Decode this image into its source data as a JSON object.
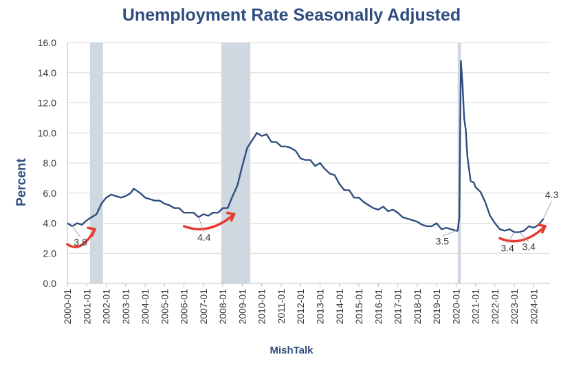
{
  "chart_data": {
    "type": "line",
    "title": "Unemployment Rate Seasonally Adjusted",
    "xlabel": "MishTalk",
    "ylabel": "Percent",
    "ylim": [
      0,
      16
    ],
    "y_ticks": [
      "0.0",
      "2.0",
      "4.0",
      "6.0",
      "8.0",
      "10.0",
      "12.0",
      "14.0",
      "16.0"
    ],
    "x_ticks": [
      "2000-01",
      "2001-01",
      "2002-01",
      "2003-01",
      "2004-01",
      "2005-01",
      "2006-01",
      "2007-01",
      "2008-01",
      "2009-01",
      "2010-01",
      "2011-01",
      "2012-01",
      "2013-01",
      "2014-01",
      "2015-01",
      "2016-01",
      "2017-01",
      "2018-01",
      "2019-01",
      "2020-01",
      "2021-01",
      "2022-01",
      "2023-01",
      "2024-01"
    ],
    "grid": true,
    "line_color": "#2f4d7e",
    "shade_color": "#cfd8e1",
    "arrow_color": "#e63b2e",
    "recessions": [
      {
        "start": "2001-03",
        "end": "2001-11"
      },
      {
        "start": "2007-12",
        "end": "2009-06"
      },
      {
        "start": "2020-02",
        "end": "2020-04"
      }
    ],
    "series": [
      {
        "points": [
          [
            "2000-01",
            4.0
          ],
          [
            "2000-04",
            3.8
          ],
          [
            "2000-07",
            4.0
          ],
          [
            "2000-10",
            3.9
          ],
          [
            "2001-01",
            4.2
          ],
          [
            "2001-04",
            4.4
          ],
          [
            "2001-07",
            4.6
          ],
          [
            "2001-10",
            5.3
          ],
          [
            "2002-01",
            5.7
          ],
          [
            "2002-04",
            5.9
          ],
          [
            "2002-07",
            5.8
          ],
          [
            "2002-10",
            5.7
          ],
          [
            "2003-01",
            5.8
          ],
          [
            "2003-04",
            6.0
          ],
          [
            "2003-06",
            6.3
          ],
          [
            "2003-10",
            6.0
          ],
          [
            "2004-01",
            5.7
          ],
          [
            "2004-04",
            5.6
          ],
          [
            "2004-07",
            5.5
          ],
          [
            "2004-10",
            5.5
          ],
          [
            "2005-01",
            5.3
          ],
          [
            "2005-04",
            5.2
          ],
          [
            "2005-07",
            5.0
          ],
          [
            "2005-10",
            5.0
          ],
          [
            "2006-01",
            4.7
          ],
          [
            "2006-04",
            4.7
          ],
          [
            "2006-07",
            4.7
          ],
          [
            "2006-10",
            4.4
          ],
          [
            "2007-01",
            4.6
          ],
          [
            "2007-04",
            4.5
          ],
          [
            "2007-07",
            4.7
          ],
          [
            "2007-10",
            4.7
          ],
          [
            "2008-01",
            5.0
          ],
          [
            "2008-04",
            5.0
          ],
          [
            "2008-07",
            5.8
          ],
          [
            "2008-10",
            6.5
          ],
          [
            "2009-01",
            7.8
          ],
          [
            "2009-04",
            9.0
          ],
          [
            "2009-07",
            9.5
          ],
          [
            "2009-10",
            10.0
          ],
          [
            "2010-01",
            9.8
          ],
          [
            "2010-04",
            9.9
          ],
          [
            "2010-07",
            9.4
          ],
          [
            "2010-10",
            9.4
          ],
          [
            "2011-01",
            9.1
          ],
          [
            "2011-04",
            9.1
          ],
          [
            "2011-07",
            9.0
          ],
          [
            "2011-10",
            8.8
          ],
          [
            "2012-01",
            8.3
          ],
          [
            "2012-04",
            8.2
          ],
          [
            "2012-07",
            8.2
          ],
          [
            "2012-10",
            7.8
          ],
          [
            "2013-01",
            8.0
          ],
          [
            "2013-04",
            7.6
          ],
          [
            "2013-07",
            7.3
          ],
          [
            "2013-10",
            7.2
          ],
          [
            "2014-01",
            6.6
          ],
          [
            "2014-04",
            6.2
          ],
          [
            "2014-07",
            6.2
          ],
          [
            "2014-10",
            5.7
          ],
          [
            "2015-01",
            5.7
          ],
          [
            "2015-04",
            5.4
          ],
          [
            "2015-07",
            5.2
          ],
          [
            "2015-10",
            5.0
          ],
          [
            "2016-01",
            4.9
          ],
          [
            "2016-04",
            5.1
          ],
          [
            "2016-07",
            4.8
          ],
          [
            "2016-10",
            4.9
          ],
          [
            "2017-01",
            4.7
          ],
          [
            "2017-04",
            4.4
          ],
          [
            "2017-07",
            4.3
          ],
          [
            "2017-10",
            4.2
          ],
          [
            "2018-01",
            4.1
          ],
          [
            "2018-04",
            3.9
          ],
          [
            "2018-07",
            3.8
          ],
          [
            "2018-10",
            3.8
          ],
          [
            "2019-01",
            4.0
          ],
          [
            "2019-04",
            3.6
          ],
          [
            "2019-07",
            3.7
          ],
          [
            "2019-10",
            3.6
          ],
          [
            "2020-01",
            3.5
          ],
          [
            "2020-02",
            3.5
          ],
          [
            "2020-03",
            4.4
          ],
          [
            "2020-04",
            14.8
          ],
          [
            "2020-05",
            13.2
          ],
          [
            "2020-06",
            11.0
          ],
          [
            "2020-07",
            10.2
          ],
          [
            "2020-08",
            8.4
          ],
          [
            "2020-10",
            6.8
          ],
          [
            "2020-12",
            6.7
          ],
          [
            "2021-01",
            6.4
          ],
          [
            "2021-04",
            6.1
          ],
          [
            "2021-07",
            5.4
          ],
          [
            "2021-10",
            4.5
          ],
          [
            "2022-01",
            4.0
          ],
          [
            "2022-04",
            3.6
          ],
          [
            "2022-07",
            3.5
          ],
          [
            "2022-10",
            3.6
          ],
          [
            "2023-01",
            3.4
          ],
          [
            "2023-04",
            3.4
          ],
          [
            "2023-07",
            3.5
          ],
          [
            "2023-10",
            3.8
          ],
          [
            "2024-01",
            3.7
          ],
          [
            "2024-04",
            3.9
          ],
          [
            "2024-07",
            4.3
          ]
        ]
      }
    ],
    "annotations": [
      {
        "label": "3.8",
        "x": "2000-04",
        "y": 3.8
      },
      {
        "label": "4.4",
        "x": "2006-10",
        "y": 4.4
      },
      {
        "label": "3.5",
        "x": "2020-01",
        "y": 3.5
      },
      {
        "label": "3.4",
        "x": "2023-01",
        "y": 3.4
      },
      {
        "label": "3.4",
        "x": "2023-04",
        "y": 3.4
      },
      {
        "label": "4.3",
        "x": "2024-07",
        "y": 4.3
      }
    ]
  }
}
